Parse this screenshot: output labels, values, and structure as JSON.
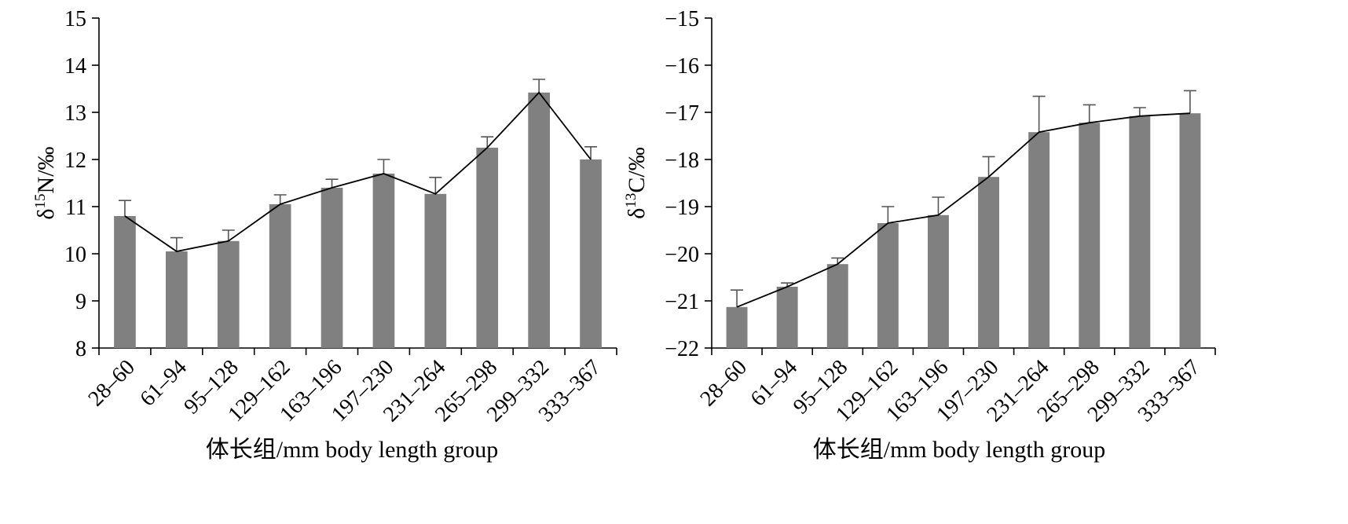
{
  "chart_data": [
    {
      "type": "bar",
      "categories": [
        "28–60",
        "61–94",
        "95–128",
        "129–162",
        "163–196",
        "197–230",
        "231–264",
        "265–298",
        "299–332",
        "333–367"
      ],
      "series": [
        {
          "values": [
            10.8,
            10.05,
            10.27,
            11.05,
            11.4,
            11.7,
            11.27,
            12.25,
            13.42,
            12.0
          ]
        }
      ],
      "errors": [
        0.33,
        0.29,
        0.23,
        0.2,
        0.18,
        0.3,
        0.35,
        0.23,
        0.28,
        0.27
      ],
      "line_overlay": true,
      "ylim": [
        8,
        15
      ],
      "yticks": [
        "8",
        "9",
        "10",
        "11",
        "12",
        "13",
        "14",
        "15"
      ],
      "ylabel": {
        "delta": "δ",
        "sup": "15",
        "rest": "N/‰"
      },
      "xlabel": "体长组/mm body length group",
      "grid": false,
      "color": "#808080"
    },
    {
      "type": "bar",
      "categories": [
        "28–60",
        "61–94",
        "95–128",
        "129–162",
        "163–196",
        "197–230",
        "231–264",
        "265–298",
        "299–332",
        "333–367"
      ],
      "series": [
        {
          "values": [
            -21.13,
            -20.7,
            -20.22,
            -19.35,
            -19.18,
            -18.37,
            -17.42,
            -17.22,
            -17.08,
            -17.02
          ]
        }
      ],
      "errors": [
        0.36,
        0.08,
        0.13,
        0.35,
        0.38,
        0.43,
        0.76,
        0.38,
        0.18,
        0.48
      ],
      "line_overlay": true,
      "ylim": [
        -22,
        -15
      ],
      "yticks": [
        "−22",
        "−21",
        "−20",
        "−19",
        "−18",
        "−17",
        "−16",
        "−15"
      ],
      "ylabel": {
        "delta": "δ",
        "sup": "13",
        "rest": "C/‰"
      },
      "xlabel": "体长组/mm body length group",
      "grid": false,
      "color": "#808080"
    }
  ]
}
